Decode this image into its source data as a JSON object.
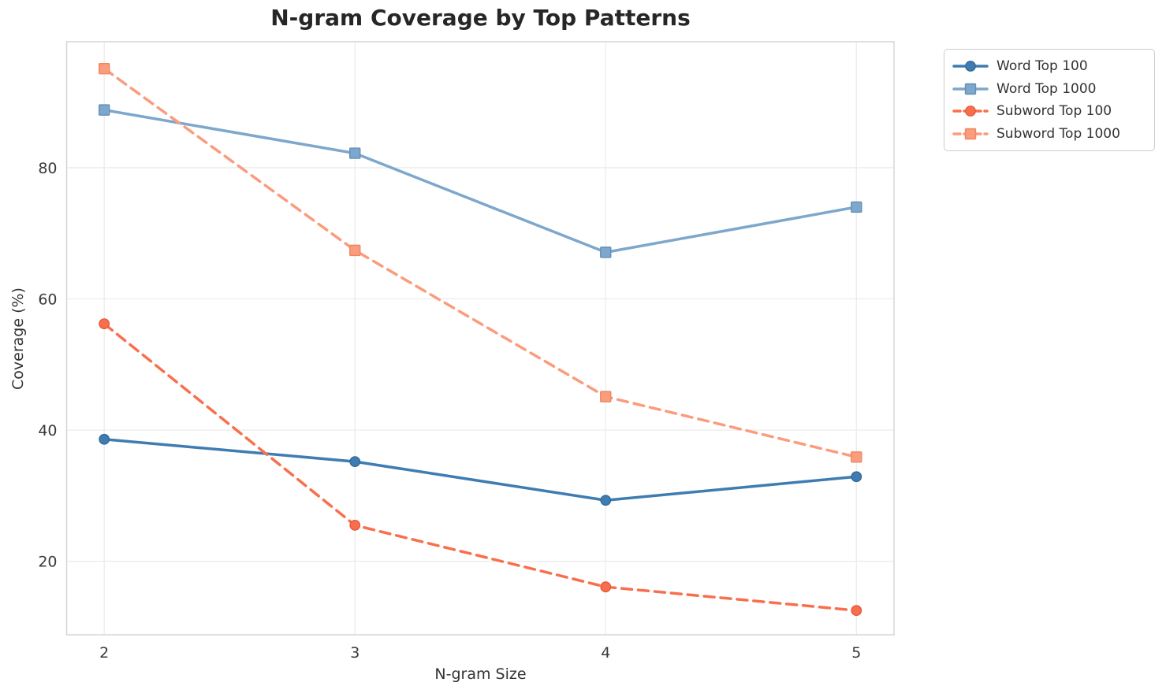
{
  "page": {
    "background": "#ffffff"
  },
  "chart_data": {
    "type": "line",
    "title": "N-gram Coverage by Top Patterns",
    "xlabel": "N-gram Size",
    "ylabel": "Coverage (%)",
    "x": [
      2,
      3,
      4,
      5
    ],
    "x_tick_labels": [
      "2",
      "3",
      "4",
      "5"
    ],
    "y_ticks": [
      20,
      40,
      60,
      80
    ],
    "y_tick_labels": [
      "20",
      "40",
      "60",
      "80"
    ],
    "xlim": [
      1.85,
      5.15
    ],
    "ylim": [
      8.8,
      99.2
    ],
    "grid": true,
    "legend_position": "outside-top-right",
    "series": [
      {
        "name": "Word Top 100",
        "values": [
          38.6,
          35.2,
          29.3,
          32.9
        ],
        "color": "#3e7cb1",
        "edge_color": "#336a99",
        "line_style": "solid",
        "marker": "circle"
      },
      {
        "name": "Word Top 1000",
        "values": [
          88.8,
          82.2,
          67.1,
          74.0
        ],
        "color": "#7da7cc",
        "edge_color": "#6590b4",
        "line_style": "solid",
        "marker": "square"
      },
      {
        "name": "Subword Top 100",
        "values": [
          56.2,
          25.5,
          16.1,
          12.5
        ],
        "color": "#f96f4d",
        "edge_color": "#e35a38",
        "line_style": "dashed",
        "marker": "circle"
      },
      {
        "name": "Subword Top 1000",
        "values": [
          95.1,
          67.4,
          45.1,
          35.9
        ],
        "color": "#fa9c7d",
        "edge_color": "#ef8663",
        "line_style": "dashed",
        "marker": "square"
      }
    ],
    "style": {
      "gridline_color": "#ececec",
      "spine_color": "#d6d6d6",
      "plot_background": "#ffffff",
      "line_width": 3.5,
      "dash_pattern": "13 8"
    }
  }
}
